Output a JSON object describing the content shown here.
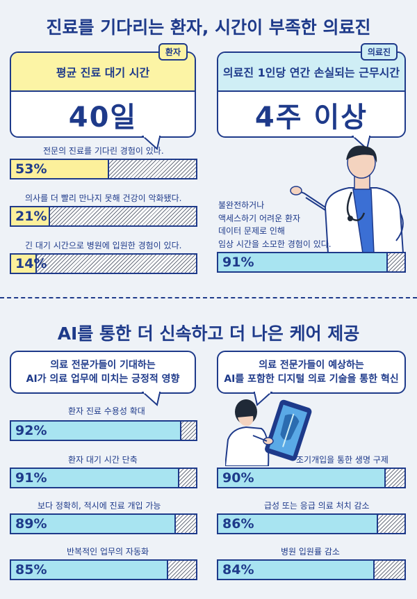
{
  "section1": {
    "title": "진료를 기다리는 환자, 시간이 부족한 의료진",
    "patient_card": {
      "tag": "환자",
      "header": "평균 진료 대기 시간",
      "value": "40일"
    },
    "staff_card": {
      "tag": "의료진",
      "header": "의료진 1인당 연간 손실되는 근무시간",
      "value": "4주 이상"
    },
    "patient_stats": [
      {
        "label": "전문의 진료를 기다린 경험이 있다.",
        "value": "53%",
        "percent": 53
      },
      {
        "label": "의사를 더 빨리 만나지 못해 건강이 악화됐다.",
        "value": "21%",
        "percent": 21
      },
      {
        "label": "긴 대기 시간으로 병원에 입원한 경험이 있다.",
        "value": "14%",
        "percent": 14
      }
    ],
    "staff_stat": {
      "lines": [
        "불완전하거나",
        "액세스하기 어려운 환자",
        "데이터 문제로 인해",
        "임상 시간을 소모한 경험이 있다."
      ],
      "value": "91%",
      "percent": 91
    },
    "doctor_icon": "doctor-illustration"
  },
  "section2": {
    "title": "AI를 통한 더 신속하고 더 나은 케어 제공",
    "left_bubble": [
      "의료 전문가들이 기대하는",
      "AI가 의료 업무에 미치는 긍정적 영향"
    ],
    "right_bubble": [
      "의료 전문가들이 예상하는",
      "AI를 포함한 디지털 의료 기술을 통한 혁신"
    ],
    "left_stats": [
      {
        "label": "환자 진료 수용성 확대",
        "value": "92%",
        "percent": 92
      },
      {
        "label": "환자 대기 시간 단축",
        "value": "91%",
        "percent": 91
      },
      {
        "label": "보다 정확히, 적시에 진료 개입 가능",
        "value": "89%",
        "percent": 89
      },
      {
        "label": "반복적인 업무의 자동화",
        "value": "85%",
        "percent": 85
      }
    ],
    "right_stats": [
      {
        "label": "조기개입을 통한 생명 구제",
        "value": "90%",
        "percent": 90
      },
      {
        "label": "급성 또는 응급 의료 처치 감소",
        "value": "86%",
        "percent": 86
      },
      {
        "label": "병원 입원률 감소",
        "value": "84%",
        "percent": 84
      }
    ],
    "tablet_icon": "person-with-tablet-illustration"
  },
  "colors": {
    "navy": "#1e3a8a",
    "yellow": "#fcf09b",
    "cyan": "#a8e4f1",
    "background": "#eef2f7"
  }
}
